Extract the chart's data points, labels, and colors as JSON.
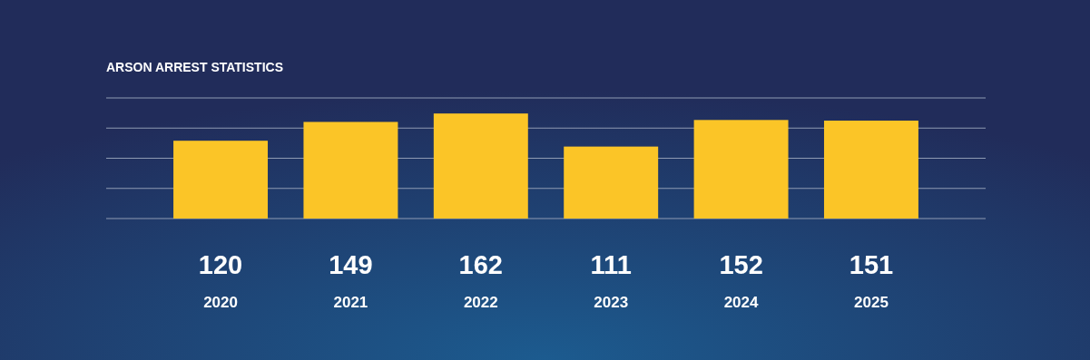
{
  "chart_data": {
    "type": "bar",
    "title": "ARSON ARREST STATISTICS",
    "categories": [
      "2020",
      "2021",
      "2022",
      "2023",
      "2024",
      "2025"
    ],
    "values": [
      120,
      149,
      162,
      111,
      152,
      151
    ],
    "color": "#fbc527",
    "ylim": [
      0,
      186
    ],
    "yticks": [
      {
        "value": 0,
        "label": null
      },
      {
        "value": 46.5,
        "label": null
      },
      {
        "value": 93,
        "label": null
      },
      {
        "value": 139.5,
        "label": null
      },
      {
        "value": 186,
        "label": null
      }
    ],
    "grid": "y",
    "data_labels": true
  }
}
